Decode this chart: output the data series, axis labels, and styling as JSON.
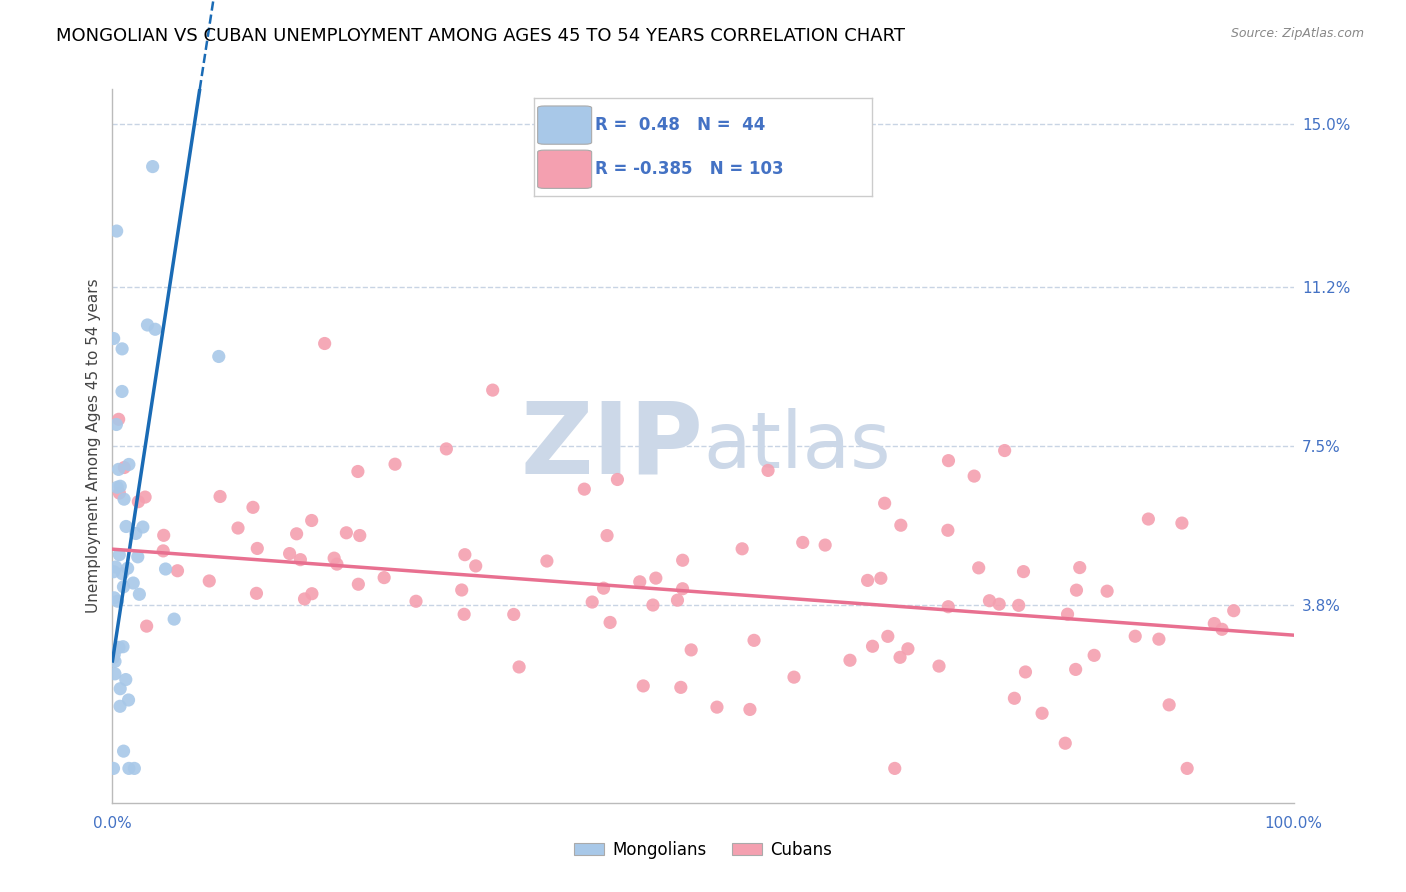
{
  "title": "MONGOLIAN VS CUBAN UNEMPLOYMENT AMONG AGES 45 TO 54 YEARS CORRELATION CHART",
  "source": "Source: ZipAtlas.com",
  "ylabel": "Unemployment Among Ages 45 to 54 years",
  "xlim": [
    0,
    1.0
  ],
  "ylim": [
    -0.008,
    0.158
  ],
  "yticks": [
    0.038,
    0.075,
    0.112,
    0.15
  ],
  "ytick_labels": [
    "3.8%",
    "7.5%",
    "11.2%",
    "15.0%"
  ],
  "xtick_labels": [
    "0.0%",
    "100.0%"
  ],
  "mongolian_R": 0.48,
  "mongolian_N": 44,
  "cuban_R": -0.385,
  "cuban_N": 103,
  "mongolian_color": "#a8c8e8",
  "cuban_color": "#f4a0b0",
  "mongolian_line_color": "#1a6bb5",
  "cuban_line_color": "#e87090",
  "background_color": "#ffffff",
  "watermark_zip": "ZIP",
  "watermark_atlas": "atlas",
  "watermark_color": "#ccd8e8",
  "grid_color": "#c8d4e4",
  "grid_style": "--",
  "title_fontsize": 13,
  "label_fontsize": 11,
  "tick_fontsize": 11,
  "legend_fontsize": 12
}
